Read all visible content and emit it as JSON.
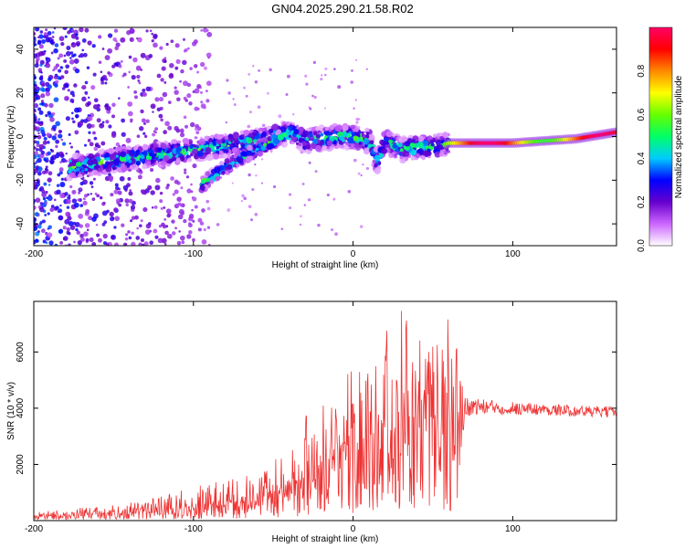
{
  "chart_data": [
    {
      "type": "heatmap",
      "title": "GN04.2025.290.21.58.R02",
      "xlabel": "Height of straight line (km)",
      "ylabel": "Frequency (Hz)",
      "xlim": [
        -200,
        165
      ],
      "ylim": [
        -50,
        50
      ],
      "xticks": [
        -200,
        -100,
        0,
        100
      ],
      "yticks": [
        -40,
        -20,
        0,
        20,
        40
      ],
      "colorbar": {
        "label": "Normalized spectral amplitude",
        "range": [
          0,
          1
        ],
        "ticks": [
          "0.0",
          "0.2",
          "0.4",
          "0.6",
          "0.8"
        ],
        "colors": [
          "#ffffff",
          "#cc66ff",
          "#6600cc",
          "#0000ff",
          "#00ccff",
          "#00ff66",
          "#66ff00",
          "#ffff00",
          "#ff8800",
          "#ff0000",
          "#ff0066"
        ]
      },
      "ridge": {
        "x": [
          -175,
          -160,
          -140,
          -120,
          -100,
          -80,
          -60,
          -40,
          -30,
          -20,
          -10,
          0,
          10,
          15,
          20,
          30,
          40,
          55,
          60,
          80,
          100,
          120,
          140,
          165
        ],
        "y": [
          -14,
          -12,
          -10,
          -8,
          -6,
          -4,
          -2,
          2,
          -2,
          -1,
          0,
          0,
          -2,
          -12,
          -2,
          -6,
          -5,
          -4,
          -3,
          -3,
          -3,
          -2,
          -1,
          2
        ]
      },
      "branch": {
        "x": [
          -95,
          -80,
          -60,
          -45
        ],
        "y": [
          -22,
          -14,
          -6,
          0
        ]
      }
    },
    {
      "type": "line",
      "xlabel": "Height of straight line (km)",
      "ylabel": "SNR (10 * v/v)",
      "xlim": [
        -200,
        165
      ],
      "ylim": [
        0,
        7800
      ],
      "xticks": [
        -200,
        -100,
        0,
        100
      ],
      "yticks": [
        2000,
        4000,
        6000
      ],
      "series": [
        {
          "name": "SNR",
          "color": "#ee3333",
          "envelope_x": [
            -200,
            -150,
            -120,
            -100,
            -80,
            -60,
            -40,
            -25,
            -10,
            0,
            10,
            20,
            30,
            40,
            50,
            60,
            66,
            70,
            80,
            100,
            120,
            140,
            165
          ],
          "envelope_mean": [
            150,
            250,
            350,
            450,
            600,
            800,
            1200,
            1800,
            2400,
            2700,
            3000,
            3300,
            3500,
            3600,
            3600,
            3600,
            3500,
            4050,
            4050,
            4000,
            3950,
            3900,
            3850
          ],
          "envelope_peak": [
            350,
            550,
            900,
            1200,
            1500,
            2000,
            2600,
            4600,
            4800,
            5600,
            6000,
            6900,
            7800,
            6400,
            6800,
            7200,
            6600,
            4500,
            4400,
            4300,
            4200,
            4150,
            4100
          ]
        }
      ]
    }
  ]
}
